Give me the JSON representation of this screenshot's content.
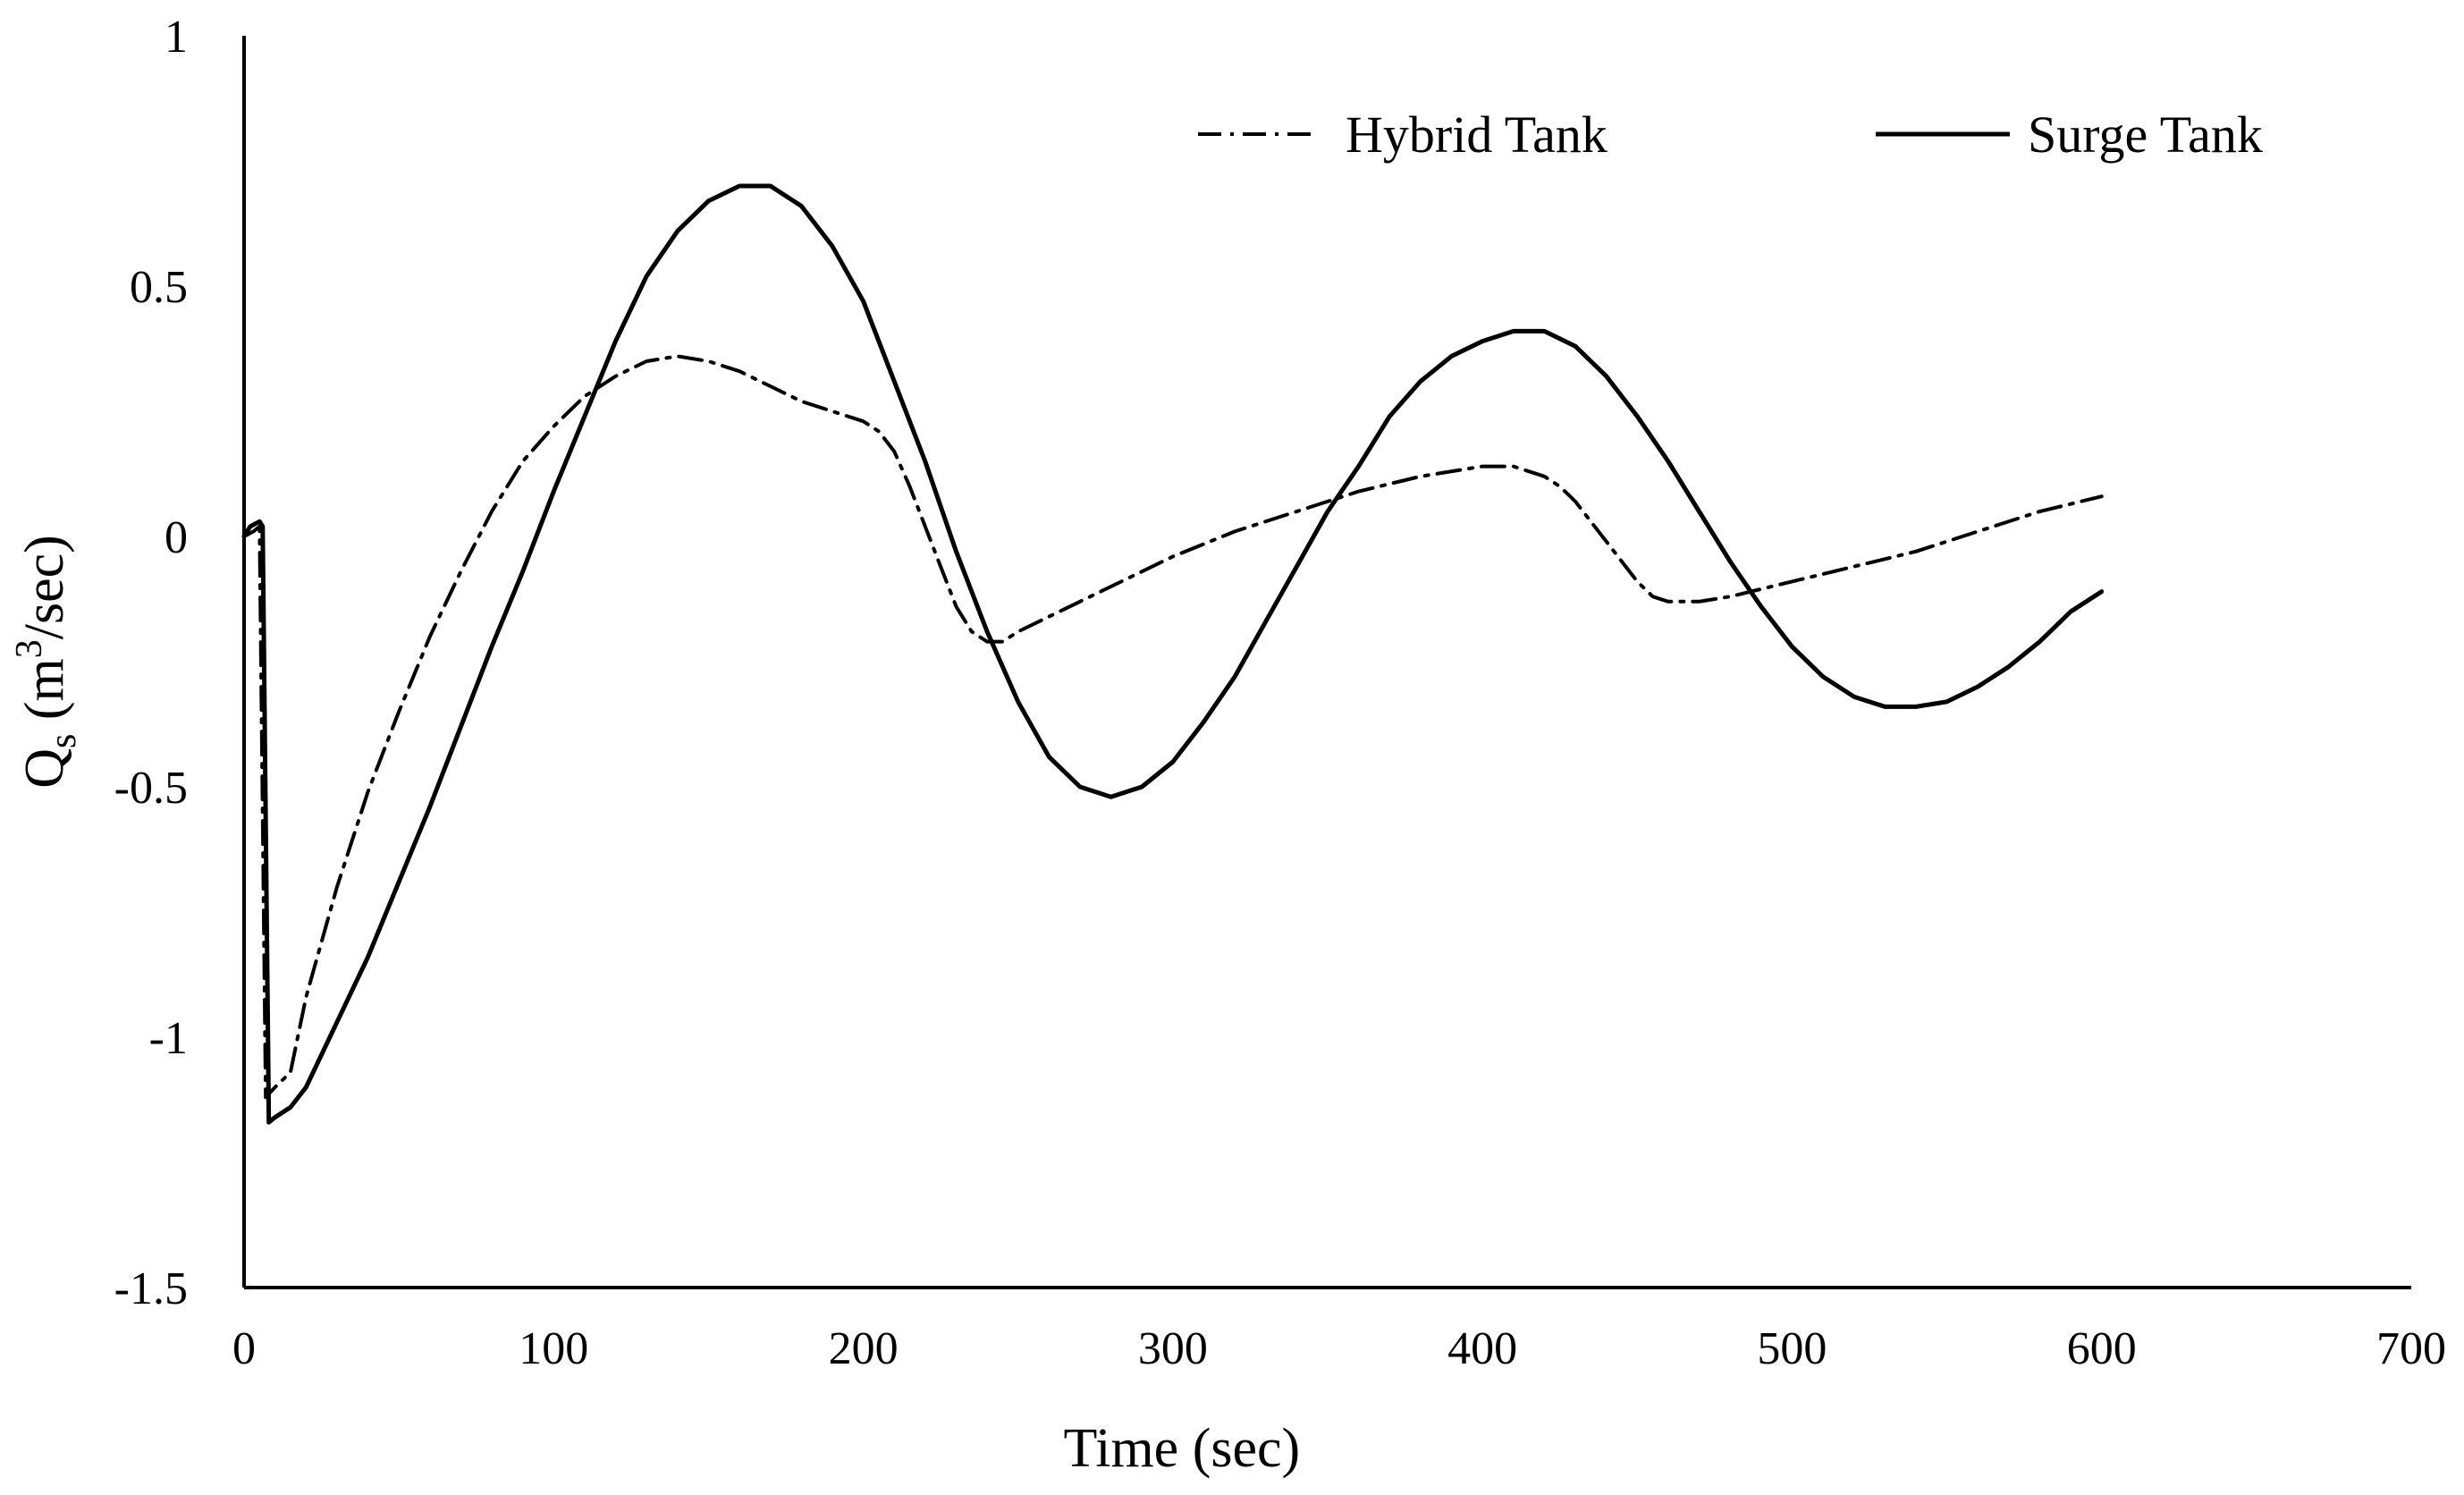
{
  "chart_data": {
    "type": "line",
    "title": "",
    "xlabel": "Time (sec)",
    "ylabel": {
      "base": "Q",
      "sub": "s",
      "open": " (m",
      "sup": "3",
      "close": "/sec)"
    },
    "xlim": [
      0,
      700
    ],
    "ylim": [
      -1.5,
      1
    ],
    "xticks": [
      0,
      100,
      200,
      300,
      400,
      500,
      600,
      700
    ],
    "yticks": [
      1,
      0.5,
      0,
      -0.5,
      -1,
      -1.5
    ],
    "xtick_labels": [
      "0",
      "100",
      "200",
      "300",
      "400",
      "500",
      "600",
      "700"
    ],
    "ytick_labels": [
      "1",
      "0.5",
      "0",
      "-0.5",
      "-1",
      "-1.5"
    ],
    "grid": false,
    "legend_position": "top-right",
    "series": [
      {
        "name": "Hybrid Tank",
        "style": "dash-dot",
        "color": "#000000",
        "x": [
          0,
          3,
          5,
          7,
          10,
          15,
          20,
          30,
          40,
          50,
          60,
          70,
          80,
          90,
          100,
          110,
          120,
          130,
          140,
          150,
          160,
          170,
          180,
          190,
          200,
          205,
          210,
          215,
          220,
          225,
          230,
          235,
          240,
          245,
          250,
          260,
          270,
          280,
          290,
          300,
          320,
          340,
          360,
          380,
          400,
          410,
          415,
          420,
          425,
          430,
          435,
          440,
          445,
          450,
          455,
          460,
          470,
          480,
          500,
          520,
          540,
          560,
          580,
          600
        ],
        "y": [
          0,
          0.01,
          0.02,
          -1.12,
          -1.1,
          -1.07,
          -0.92,
          -0.7,
          -0.51,
          -0.35,
          -0.2,
          -0.07,
          0.05,
          0.15,
          0.22,
          0.28,
          0.32,
          0.35,
          0.36,
          0.35,
          0.33,
          0.3,
          0.27,
          0.25,
          0.23,
          0.21,
          0.17,
          0.1,
          0.02,
          -0.06,
          -0.14,
          -0.19,
          -0.21,
          -0.21,
          -0.19,
          -0.16,
          -0.13,
          -0.1,
          -0.07,
          -0.04,
          0.01,
          0.05,
          0.09,
          0.12,
          0.14,
          0.14,
          0.13,
          0.12,
          0.1,
          0.07,
          0.03,
          -0.01,
          -0.05,
          -0.09,
          -0.12,
          -0.13,
          -0.13,
          -0.12,
          -0.09,
          -0.06,
          -0.03,
          0.01,
          0.05,
          0.08
        ]
      },
      {
        "name": "Surge Tank",
        "style": "solid",
        "color": "#000000",
        "x": [
          0,
          2,
          5,
          6,
          8,
          10,
          15,
          20,
          30,
          40,
          50,
          60,
          70,
          80,
          90,
          100,
          110,
          120,
          130,
          140,
          150,
          160,
          170,
          180,
          190,
          200,
          210,
          220,
          230,
          240,
          250,
          260,
          270,
          280,
          290,
          300,
          310,
          320,
          330,
          340,
          350,
          360,
          370,
          380,
          390,
          400,
          410,
          420,
          430,
          440,
          450,
          460,
          470,
          480,
          490,
          500,
          510,
          520,
          530,
          540,
          550,
          560,
          570,
          580,
          590,
          600
        ],
        "y": [
          0,
          0.02,
          0.03,
          0.02,
          -1.17,
          -1.16,
          -1.14,
          -1.1,
          -0.97,
          -0.84,
          -0.69,
          -0.54,
          -0.38,
          -0.22,
          -0.07,
          0.09,
          0.24,
          0.39,
          0.52,
          0.61,
          0.67,
          0.7,
          0.7,
          0.66,
          0.58,
          0.47,
          0.31,
          0.15,
          -0.03,
          -0.19,
          -0.33,
          -0.44,
          -0.5,
          -0.52,
          -0.5,
          -0.45,
          -0.37,
          -0.28,
          -0.17,
          -0.06,
          0.05,
          0.14,
          0.24,
          0.31,
          0.36,
          0.39,
          0.41,
          0.41,
          0.38,
          0.32,
          0.24,
          0.15,
          0.05,
          -0.05,
          -0.14,
          -0.22,
          -0.28,
          -0.32,
          -0.34,
          -0.34,
          -0.33,
          -0.3,
          -0.26,
          -0.21,
          -0.15,
          -0.11
        ]
      }
    ]
  }
}
